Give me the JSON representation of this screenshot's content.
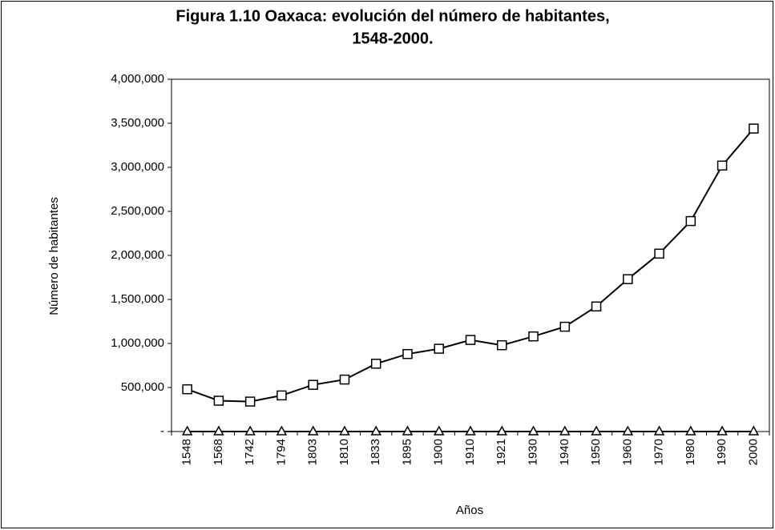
{
  "chart_data": {
    "type": "line",
    "title": [
      "Figura 1.10 Oaxaca: evolución del número de habitantes,",
      "1548-2000."
    ],
    "x_label": "Años",
    "y_label": "Número de habitantes",
    "categories": [
      "1548",
      "1568",
      "1742",
      "1794",
      "1803",
      "1810",
      "1833",
      "1895",
      "1900",
      "1910",
      "1921",
      "1930",
      "1940",
      "1950",
      "1960",
      "1970",
      "1980",
      "1990",
      "2000"
    ],
    "series": [
      {
        "color": "#000000",
        "marker": "square",
        "values": [
          480000,
          350000,
          340000,
          410000,
          530000,
          590000,
          770000,
          880000,
          940000,
          1040000,
          980000,
          1080000,
          1190000,
          1420000,
          1730000,
          2020000,
          2390000,
          3020000,
          3440000
        ]
      },
      {
        "color": "#000000",
        "marker": "triangle",
        "values": [
          0,
          0,
          0,
          0,
          0,
          0,
          0,
          0,
          0,
          0,
          0,
          0,
          0,
          0,
          0,
          0,
          0,
          0,
          0
        ]
      }
    ],
    "ylim": [
      0,
      4000000
    ],
    "yticks": [
      {
        "value": 0,
        "label": "-"
      },
      {
        "value": 500000,
        "label": "500,000"
      },
      {
        "value": 1000000,
        "label": "1,000,000"
      },
      {
        "value": 1500000,
        "label": "1,500,000"
      },
      {
        "value": 2000000,
        "label": "2,000,000"
      },
      {
        "value": 2500000,
        "label": "2,500,000"
      },
      {
        "value": 3000000,
        "label": "3,000,000"
      },
      {
        "value": 3500000,
        "label": "3,500,000"
      },
      {
        "value": 4000000,
        "label": "4,000,000"
      }
    ],
    "grid": false
  }
}
